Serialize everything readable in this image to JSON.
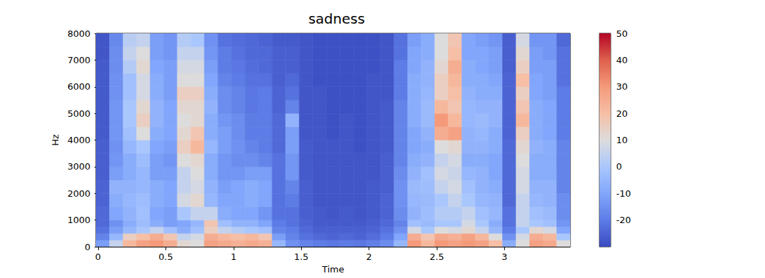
{
  "chart_data": {
    "type": "heatmap",
    "title": "sadness",
    "x_label": "Time",
    "y_label": "Hz",
    "xlim": [
      -0.015,
      3.485
    ],
    "xticks": [
      0,
      0.5,
      1,
      1.5,
      2,
      2.5,
      3
    ],
    "ylim": [
      0,
      8000
    ],
    "yticks": [
      0,
      1000,
      2000,
      3000,
      4000,
      5000,
      6000,
      7000,
      8000
    ],
    "time_bins": [
      -0.015,
      0.085,
      0.185,
      0.285,
      0.385,
      0.485,
      0.585,
      0.685,
      0.785,
      0.885,
      0.985,
      1.085,
      1.185,
      1.285,
      1.385,
      1.485,
      1.585,
      1.685,
      1.785,
      1.885,
      1.985,
      2.085,
      2.185,
      2.285,
      2.385,
      2.485,
      2.585,
      2.685,
      2.785,
      2.885,
      2.985,
      3.085,
      3.185,
      3.285,
      3.385,
      3.485
    ],
    "freq_bins": [
      0,
      250,
      500,
      750,
      1000,
      1500,
      2000,
      2500,
      3000,
      3500,
      4000,
      4500,
      5000,
      5500,
      6000,
      6500,
      7000,
      7500,
      8000
    ],
    "cells_by_time": [
      [
        -12,
        -18,
        -22,
        -24,
        -24,
        -25,
        -25,
        -26,
        -26,
        -26,
        -27,
        -27,
        -27,
        -27,
        -27,
        -27,
        -28,
        -28
      ],
      [
        5,
        -5,
        -12,
        -15,
        -10,
        -8,
        -6,
        -12,
        -14,
        -15,
        -14,
        -14,
        -14,
        -15,
        -15,
        -16,
        -16,
        -17
      ],
      [
        22,
        15,
        -5,
        -8,
        -6,
        -5,
        -6,
        -8,
        -8,
        -5,
        -2,
        0,
        0,
        -2,
        -2,
        2,
        5,
        3
      ],
      [
        28,
        20,
        0,
        -3,
        -2,
        -3,
        -5,
        -5,
        -3,
        0,
        10,
        15,
        12,
        8,
        8,
        12,
        10,
        5
      ],
      [
        30,
        25,
        5,
        -8,
        -10,
        -8,
        -8,
        -12,
        -12,
        -10,
        -8,
        -6,
        -6,
        -8,
        -8,
        -10,
        -12,
        -12
      ],
      [
        25,
        18,
        -2,
        -12,
        -12,
        -10,
        -10,
        -12,
        -14,
        -12,
        -10,
        -10,
        -10,
        -12,
        -12,
        -12,
        -14,
        -14
      ],
      [
        12,
        5,
        -8,
        -10,
        0,
        8,
        5,
        5,
        10,
        15,
        12,
        10,
        12,
        15,
        10,
        8,
        5,
        2
      ],
      [
        10,
        8,
        -2,
        -5,
        5,
        12,
        8,
        10,
        12,
        22,
        18,
        12,
        12,
        15,
        10,
        8,
        5,
        0
      ],
      [
        28,
        25,
        15,
        18,
        5,
        -5,
        -6,
        -8,
        -8,
        -5,
        -8,
        -8,
        -6,
        -8,
        -10,
        -12,
        -14,
        -15
      ],
      [
        26,
        22,
        5,
        -2,
        -8,
        -10,
        -12,
        -14,
        -14,
        -12,
        -12,
        -14,
        -16,
        -16,
        -18,
        -20,
        -20,
        -22
      ],
      [
        24,
        20,
        2,
        -6,
        -10,
        -10,
        -10,
        -14,
        -16,
        -15,
        -16,
        -16,
        -18,
        -18,
        -20,
        -21,
        -22,
        -23
      ],
      [
        26,
        22,
        0,
        -6,
        -10,
        -8,
        -8,
        -12,
        -16,
        -18,
        -20,
        -20,
        -21,
        -21,
        -22,
        -23,
        -24,
        -24
      ],
      [
        24,
        18,
        -2,
        -10,
        -14,
        -10,
        -10,
        -12,
        -18,
        -20,
        -20,
        -20,
        -20,
        -20,
        -22,
        -24,
        -24,
        -25
      ],
      [
        -5,
        -12,
        -18,
        -20,
        -22,
        -22,
        -22,
        -22,
        -22,
        -24,
        -24,
        -24,
        -25,
        -25,
        -26,
        -26,
        -26,
        -27
      ],
      [
        -15,
        -18,
        -20,
        -22,
        -22,
        -20,
        -18,
        -14,
        -14,
        -12,
        -12,
        -6,
        -18,
        -22,
        -24,
        -26,
        -26,
        -27
      ],
      [
        -18,
        -22,
        -24,
        -25,
        -26,
        -26,
        -26,
        -27,
        -27,
        -27,
        -28,
        -28,
        -28,
        -28,
        -28,
        -28,
        -28,
        -28
      ],
      [
        -20,
        -24,
        -26,
        -27,
        -27,
        -28,
        -28,
        -28,
        -28,
        -28,
        -28,
        -28,
        -28,
        -28,
        -29,
        -29,
        -29,
        -29
      ],
      [
        -21,
        -25,
        -26,
        -27,
        -28,
        -28,
        -28,
        -28,
        -28,
        -28,
        -29,
        -29,
        -29,
        -29,
        -29,
        -29,
        -29,
        -29
      ],
      [
        -20,
        -24,
        -26,
        -27,
        -27,
        -28,
        -28,
        -28,
        -28,
        -28,
        -28,
        -28,
        -29,
        -29,
        -29,
        -29,
        -29,
        -29
      ],
      [
        -21,
        -25,
        -26,
        -27,
        -28,
        -28,
        -28,
        -28,
        -28,
        -29,
        -29,
        -29,
        -29,
        -29,
        -29,
        -29,
        -29,
        -29
      ],
      [
        -19,
        -23,
        -25,
        -26,
        -27,
        -27,
        -27,
        -28,
        -28,
        -28,
        -28,
        -28,
        -28,
        -28,
        -28,
        -29,
        -29,
        -29
      ],
      [
        -16,
        -20,
        -22,
        -24,
        -25,
        -25,
        -26,
        -26,
        -26,
        -27,
        -27,
        -27,
        -27,
        -28,
        -28,
        -28,
        -28,
        -28
      ],
      [
        -5,
        -10,
        -15,
        -18,
        -16,
        -15,
        -15,
        -16,
        -18,
        -18,
        -18,
        -18,
        -18,
        -20,
        -20,
        -20,
        -22,
        -22
      ],
      [
        30,
        25,
        8,
        -2,
        -6,
        -5,
        -4,
        -6,
        -8,
        -10,
        -10,
        -8,
        -8,
        -8,
        -8,
        -10,
        -10,
        -12
      ],
      [
        22,
        18,
        0,
        -4,
        -3,
        -4,
        -3,
        -2,
        -6,
        -8,
        -6,
        -4,
        -4,
        -5,
        -6,
        -6,
        -8,
        -8
      ],
      [
        30,
        26,
        10,
        0,
        2,
        0,
        5,
        8,
        5,
        10,
        25,
        30,
        22,
        15,
        15,
        12,
        10,
        10
      ],
      [
        28,
        24,
        8,
        0,
        2,
        5,
        8,
        6,
        8,
        12,
        28,
        22,
        18,
        20,
        22,
        25,
        20,
        18
      ],
      [
        30,
        28,
        12,
        8,
        5,
        0,
        -2,
        -5,
        -8,
        -6,
        -6,
        -5,
        -5,
        -6,
        -8,
        -8,
        -10,
        -10
      ],
      [
        28,
        22,
        5,
        0,
        -2,
        -5,
        -6,
        -6,
        -8,
        -6,
        -5,
        -4,
        -6,
        -8,
        -8,
        -10,
        -10,
        -12
      ],
      [
        20,
        10,
        -5,
        -8,
        -5,
        -6,
        -8,
        -10,
        -10,
        -8,
        -8,
        -6,
        -6,
        -8,
        -10,
        -12,
        -12,
        -14
      ],
      [
        -8,
        -15,
        -20,
        -22,
        -22,
        -24,
        -24,
        -24,
        -24,
        -24,
        -25,
        -25,
        -25,
        -25,
        -25,
        -26,
        -26,
        -26
      ],
      [
        10,
        8,
        0,
        5,
        5,
        5,
        8,
        8,
        10,
        12,
        15,
        22,
        18,
        15,
        20,
        15,
        12,
        8
      ],
      [
        28,
        25,
        12,
        0,
        -2,
        -5,
        -6,
        -8,
        -8,
        -6,
        -8,
        -8,
        -8,
        -10,
        -10,
        -12,
        -12,
        -14
      ],
      [
        26,
        22,
        8,
        -2,
        -4,
        -6,
        -6,
        -8,
        -8,
        -8,
        -10,
        -10,
        -10,
        -12,
        -12,
        -12,
        -14,
        -14
      ],
      [
        10,
        0,
        -10,
        -14,
        -16,
        -16,
        -18,
        -18,
        -18,
        -18,
        -20,
        -20,
        -20,
        -20,
        -22,
        -22,
        -22,
        -24
      ]
    ],
    "colorbar": {
      "range": [
        -30,
        50
      ],
      "ticks": [
        -20,
        -10,
        0,
        10,
        20,
        30,
        40,
        50
      ]
    }
  }
}
